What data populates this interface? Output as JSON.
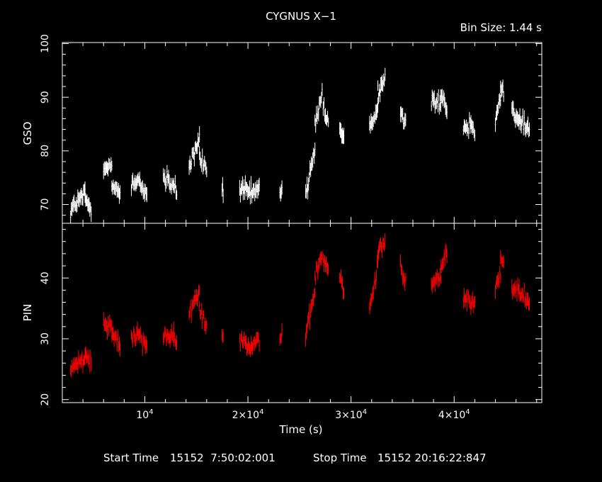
{
  "chart_data": {
    "type": "scatter",
    "title": "CYGNUS X−1",
    "bin_size": "Bin Size: 1.44 s",
    "xlabel": "Time (s)",
    "x_range": [
      2000,
      48500
    ],
    "x_ticks": [
      {
        "value": 10000,
        "mant": "10",
        "exp": "4"
      },
      {
        "value": 20000,
        "mant": "2×10",
        "exp": "4"
      },
      {
        "value": 30000,
        "mant": "3×10",
        "exp": "4"
      },
      {
        "value": 40000,
        "mant": "4×10",
        "exp": "4"
      }
    ],
    "panels": [
      {
        "ylabel": "GSO",
        "color": "#ffffff",
        "ylim": [
          66.5,
          100.2
        ],
        "y_ticks": [
          70,
          80,
          90,
          100
        ],
        "segments": [
          {
            "x0": 2800,
            "x1": 4200,
            "y0": 69,
            "y1": 72
          },
          {
            "x0": 4200,
            "x1": 4800,
            "y0": 71,
            "y1": 69
          },
          {
            "x0": 6000,
            "x1": 6800,
            "y0": 76,
            "y1": 78
          },
          {
            "x0": 6800,
            "x1": 7600,
            "y0": 74,
            "y1": 72
          },
          {
            "x0": 8700,
            "x1": 9500,
            "y0": 73,
            "y1": 75
          },
          {
            "x0": 9500,
            "x1": 10200,
            "y0": 74,
            "y1": 72
          },
          {
            "x0": 11800,
            "x1": 12800,
            "y0": 75,
            "y1": 73
          },
          {
            "x0": 12800,
            "x1": 13100,
            "y0": 74,
            "y1": 72
          },
          {
            "x0": 14300,
            "x1": 15300,
            "y0": 77,
            "y1": 82
          },
          {
            "x0": 15300,
            "x1": 16000,
            "y0": 79,
            "y1": 76
          },
          {
            "x0": 17500,
            "x1": 17600,
            "y0": 73,
            "y1": 73
          },
          {
            "x0": 19200,
            "x1": 20300,
            "y0": 73,
            "y1": 72
          },
          {
            "x0": 20300,
            "x1": 21100,
            "y0": 72,
            "y1": 73
          },
          {
            "x0": 23100,
            "x1": 23300,
            "y0": 72,
            "y1": 74
          },
          {
            "x0": 25600,
            "x1": 26500,
            "y0": 72,
            "y1": 80
          },
          {
            "x0": 26500,
            "x1": 27200,
            "y0": 85,
            "y1": 91
          },
          {
            "x0": 27300,
            "x1": 27800,
            "y0": 88,
            "y1": 85
          },
          {
            "x0": 28900,
            "x1": 29300,
            "y0": 84,
            "y1": 82
          },
          {
            "x0": 31800,
            "x1": 32600,
            "y0": 84,
            "y1": 89
          },
          {
            "x0": 32600,
            "x1": 33300,
            "y0": 91,
            "y1": 93
          },
          {
            "x0": 34800,
            "x1": 35300,
            "y0": 88,
            "y1": 84
          },
          {
            "x0": 37800,
            "x1": 38700,
            "y0": 90,
            "y1": 89
          },
          {
            "x0": 38700,
            "x1": 39300,
            "y0": 91,
            "y1": 88
          },
          {
            "x0": 40900,
            "x1": 41700,
            "y0": 84,
            "y1": 85
          },
          {
            "x0": 41700,
            "x1": 42000,
            "y0": 85,
            "y1": 84
          },
          {
            "x0": 44000,
            "x1": 44500,
            "y0": 86,
            "y1": 90
          },
          {
            "x0": 44500,
            "x1": 44800,
            "y0": 92,
            "y1": 91
          },
          {
            "x0": 45600,
            "x1": 46300,
            "y0": 88,
            "y1": 85
          },
          {
            "x0": 46300,
            "x1": 47300,
            "y0": 86,
            "y1": 84
          }
        ]
      },
      {
        "ylabel": "PIN",
        "color": "#ff0000",
        "ylim": [
          19.5,
          49
        ],
        "y_ticks": [
          20,
          30,
          40
        ],
        "segments": [
          {
            "x0": 2800,
            "x1": 4200,
            "y0": 25,
            "y1": 27
          },
          {
            "x0": 4200,
            "x1": 4800,
            "y0": 28,
            "y1": 26
          },
          {
            "x0": 6000,
            "x1": 6800,
            "y0": 33,
            "y1": 32
          },
          {
            "x0": 6800,
            "x1": 7600,
            "y0": 31,
            "y1": 29
          },
          {
            "x0": 8700,
            "x1": 9500,
            "y0": 30,
            "y1": 31
          },
          {
            "x0": 9500,
            "x1": 10200,
            "y0": 30,
            "y1": 29
          },
          {
            "x0": 11800,
            "x1": 12800,
            "y0": 31,
            "y1": 30
          },
          {
            "x0": 12800,
            "x1": 13100,
            "y0": 30,
            "y1": 29
          },
          {
            "x0": 14300,
            "x1": 15300,
            "y0": 34,
            "y1": 38
          },
          {
            "x0": 15300,
            "x1": 16000,
            "y0": 35,
            "y1": 32
          },
          {
            "x0": 17500,
            "x1": 17600,
            "y0": 31,
            "y1": 31
          },
          {
            "x0": 19200,
            "x1": 20300,
            "y0": 30,
            "y1": 29
          },
          {
            "x0": 20300,
            "x1": 21100,
            "y0": 29,
            "y1": 30
          },
          {
            "x0": 23100,
            "x1": 23300,
            "y0": 30,
            "y1": 31
          },
          {
            "x0": 25600,
            "x1": 26500,
            "y0": 30,
            "y1": 38
          },
          {
            "x0": 26500,
            "x1": 27200,
            "y0": 40,
            "y1": 44
          },
          {
            "x0": 27300,
            "x1": 27800,
            "y0": 43,
            "y1": 41
          },
          {
            "x0": 28900,
            "x1": 29300,
            "y0": 40,
            "y1": 38
          },
          {
            "x0": 31800,
            "x1": 32600,
            "y0": 35,
            "y1": 42
          },
          {
            "x0": 32600,
            "x1": 33300,
            "y0": 45,
            "y1": 46
          },
          {
            "x0": 34800,
            "x1": 35300,
            "y0": 42,
            "y1": 39
          },
          {
            "x0": 37800,
            "x1": 38700,
            "y0": 39,
            "y1": 40
          },
          {
            "x0": 38700,
            "x1": 39300,
            "y0": 42,
            "y1": 44
          },
          {
            "x0": 40900,
            "x1": 41700,
            "y0": 37,
            "y1": 36
          },
          {
            "x0": 41700,
            "x1": 42000,
            "y0": 37,
            "y1": 36
          },
          {
            "x0": 44000,
            "x1": 44500,
            "y0": 38,
            "y1": 41
          },
          {
            "x0": 44500,
            "x1": 44800,
            "y0": 43,
            "y1": 42
          },
          {
            "x0": 45600,
            "x1": 46300,
            "y0": 38,
            "y1": 38
          },
          {
            "x0": 46300,
            "x1": 47300,
            "y0": 38,
            "y1": 36
          }
        ]
      }
    ]
  },
  "footer": {
    "start_label": "Start Time",
    "start_value": "15152  7:50:02:001",
    "stop_label": "Stop Time",
    "stop_value": "15152 20:16:22:847"
  }
}
